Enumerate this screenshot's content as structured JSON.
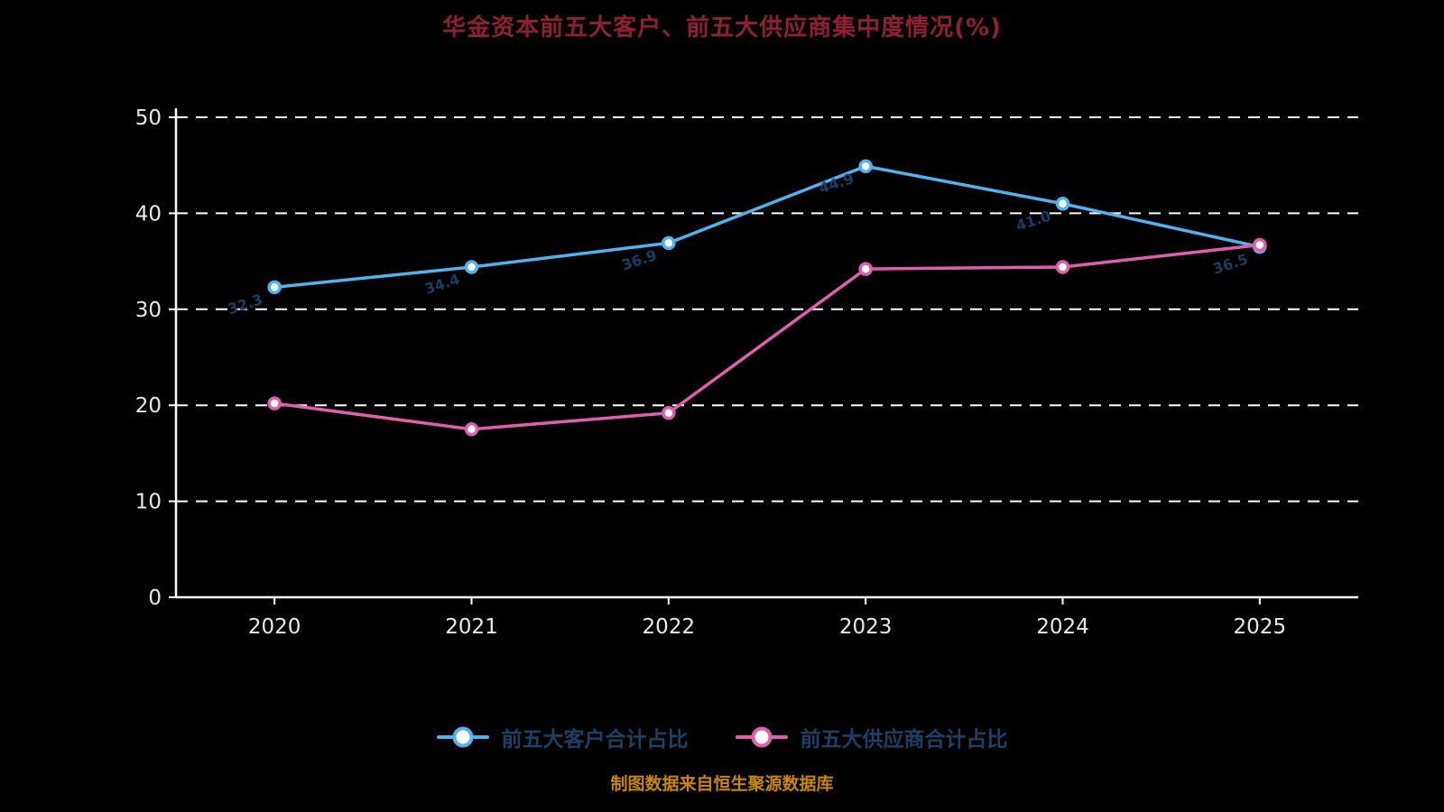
{
  "title": "华金资本前五大客户、前五大供应商集中度情况(%)",
  "footer": "制图数据来自恒生聚源数据库",
  "colors": {
    "background": "#000000",
    "title": "#8f2033",
    "axis": "#ffffff",
    "grid": "#ffffff",
    "tick_label": "#e9e9e9",
    "series_client": "#4fb3ef",
    "series_supplier": "#df5fae",
    "marker_fill": "#ffffff",
    "legend_text": "#1b4264",
    "footer_text": "#c8860b",
    "data_label": "#1d4470"
  },
  "chart_data": {
    "type": "line",
    "categories": [
      "2020",
      "2021",
      "2022",
      "2023",
      "2024",
      "2025"
    ],
    "series": [
      {
        "name": "前五大客户合计占比",
        "color_key": "series_client",
        "values": [
          32.3,
          34.4,
          36.9,
          44.9,
          41.0,
          36.5
        ]
      },
      {
        "name": "前五大供应商合计占比",
        "color_key": "series_supplier",
        "values": [
          20.2,
          17.5,
          19.2,
          34.2,
          34.4,
          36.7
        ]
      }
    ],
    "point_labels": [
      "32.3",
      "34.4",
      "36.9",
      "44.9",
      "41.0",
      "36.5"
    ],
    "ylim": [
      0,
      50
    ],
    "yticks": [
      0,
      10,
      20,
      30,
      40,
      50
    ],
    "grid": "dashed-horizontal",
    "legend_position": "bottom"
  }
}
